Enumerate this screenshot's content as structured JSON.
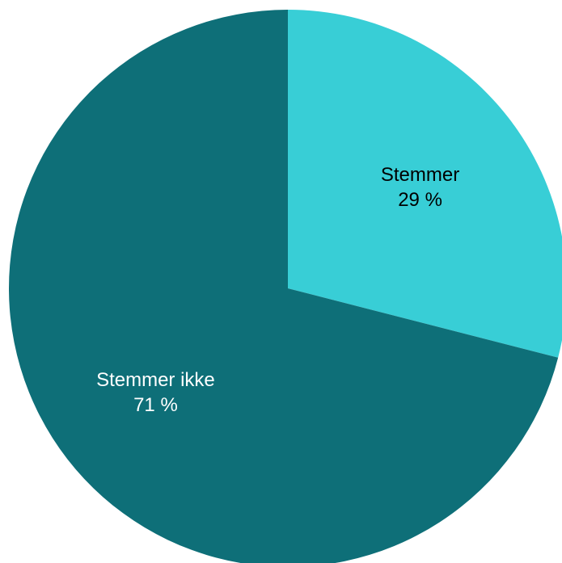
{
  "chart_data": {
    "type": "pie",
    "title": "",
    "slices": [
      {
        "label": "Stemmer",
        "value": 29,
        "value_label": "29 %",
        "color": "#38CED6",
        "label_color": "#000000"
      },
      {
        "label": "Stemmer ikke",
        "value": 71,
        "value_label": "71 %",
        "color": "#0E6F78",
        "label_color": "#FFFFFF"
      }
    ],
    "legend": "none"
  }
}
